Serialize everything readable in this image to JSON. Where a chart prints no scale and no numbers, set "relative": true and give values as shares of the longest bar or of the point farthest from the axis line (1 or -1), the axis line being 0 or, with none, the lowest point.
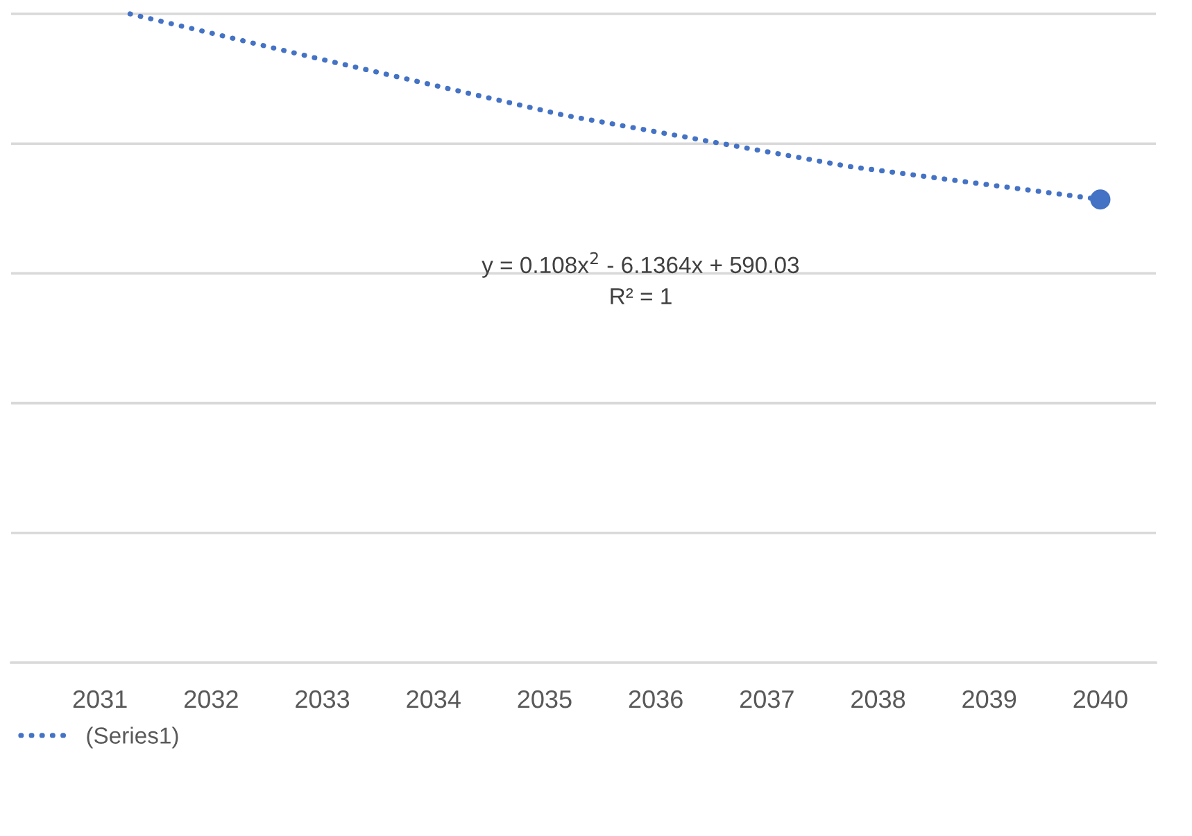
{
  "chart_data": {
    "type": "scatter",
    "relative": true,
    "xlim": [
      2030.2,
      2040.5
    ],
    "xticks": [
      2031,
      2032,
      2033,
      2034,
      2035,
      2036,
      2037,
      2038,
      2039,
      2040
    ],
    "series": [
      {
        "color": "#4472c4",
        "x": [
          2040
        ],
        "values": [
          0.714
        ],
        "marker": "circle"
      },
      {
        "type": "line",
        "name": "(Series1)",
        "color": "#4472c4",
        "line_style": "dotted",
        "marker": "none",
        "x": [
          2031.27,
          2032.89,
          2035.17,
          2037.73,
          2040.0
        ],
        "values": [
          1.0,
          0.934,
          0.844,
          0.765,
          0.714
        ]
      }
    ],
    "annotations": [
      "y = 0.108x$^{2}$ - 6.1364x + 590.03",
      "R² = 1"
    ],
    "grid": "y",
    "legend": "bottom left"
  }
}
